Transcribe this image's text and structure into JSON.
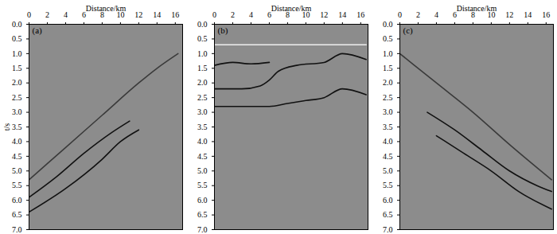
{
  "chart_data": [
    {
      "type": "seismic_section",
      "annotations": [
        "(a)"
      ],
      "x_label": "Distance/km",
      "y_label": "t/s",
      "xlim": [
        0,
        16.8
      ],
      "xticks": [
        0,
        2,
        4,
        6,
        8,
        10,
        12,
        14,
        16
      ],
      "ylim": [
        0,
        7
      ],
      "yticks": [
        {
          "value": 0,
          "label": "0.0"
        },
        {
          "value": 0.5,
          "label": "0.5"
        },
        {
          "value": 1,
          "label": "1.0"
        },
        {
          "value": 1.5,
          "label": "1.5"
        },
        {
          "value": 2,
          "label": "2.0"
        },
        {
          "value": 2.5,
          "label": "2.5"
        },
        {
          "value": 3,
          "label": "3.0"
        },
        {
          "value": 3.5,
          "label": "3.5"
        },
        {
          "value": 4,
          "label": "4.0"
        },
        {
          "value": 4.5,
          "label": "4.5"
        },
        {
          "value": 5,
          "label": "5.0"
        },
        {
          "value": 5.5,
          "label": "5.5"
        },
        {
          "value": 6,
          "label": "6.0"
        },
        {
          "value": 6.5,
          "label": "6.5"
        },
        {
          "value": 7,
          "label": "7.0"
        }
      ],
      "series": [
        {
          "color": "#3a3a3a",
          "x": [
            0,
            4,
            8,
            12,
            14,
            16.3
          ],
          "values": [
            5.3,
            4.2,
            3.1,
            2.0,
            1.5,
            1.0
          ]
        },
        {
          "color": "#111111",
          "x": [
            0,
            3,
            6,
            9,
            11
          ],
          "values": [
            5.9,
            5.2,
            4.4,
            3.7,
            3.3
          ]
        },
        {
          "color": "#111111",
          "x": [
            0,
            4,
            8,
            10,
            12
          ],
          "values": [
            6.4,
            5.6,
            4.6,
            4.0,
            3.6
          ]
        }
      ]
    },
    {
      "type": "seismic_section",
      "annotations": [
        "(b)"
      ],
      "x_label": "Distance/km",
      "xlim": [
        0,
        16.8
      ],
      "xticks": [
        0,
        2,
        4,
        6,
        8,
        10,
        12,
        14,
        16
      ],
      "ylim": [
        0,
        7
      ],
      "yticks": [
        {
          "value": 0,
          "label": "0.0"
        },
        {
          "value": 0.5,
          "label": "0.5"
        },
        {
          "value": 1,
          "label": "1.0"
        },
        {
          "value": 1.5,
          "label": "1.5"
        },
        {
          "value": 2,
          "label": "2.0"
        },
        {
          "value": 2.5,
          "label": "2.5"
        },
        {
          "value": 3,
          "label": "3.0"
        },
        {
          "value": 3.5,
          "label": "3.5"
        },
        {
          "value": 4,
          "label": "4.0"
        },
        {
          "value": 4.5,
          "label": "4.5"
        },
        {
          "value": 5,
          "label": "5.0"
        },
        {
          "value": 5.5,
          "label": "5.5"
        },
        {
          "value": 6,
          "label": "6.0"
        },
        {
          "value": 6.5,
          "label": "6.5"
        },
        {
          "value": 7,
          "label": "7.0"
        }
      ],
      "series": [
        {
          "color": "#eeeeee",
          "x": [
            0,
            16.6
          ],
          "values": [
            0.7,
            0.7
          ]
        },
        {
          "color": "#111111",
          "x": [
            0,
            2,
            4,
            6
          ],
          "values": [
            1.4,
            1.3,
            1.35,
            1.3
          ]
        },
        {
          "color": "#111111",
          "x": [
            0,
            3,
            5,
            6,
            7,
            9,
            12,
            14,
            16.6
          ],
          "values": [
            2.2,
            2.2,
            2.1,
            1.9,
            1.6,
            1.4,
            1.3,
            1.0,
            1.2
          ]
        },
        {
          "color": "#111111",
          "x": [
            0,
            3,
            6,
            8,
            10,
            12,
            14,
            16.6
          ],
          "values": [
            2.8,
            2.8,
            2.8,
            2.7,
            2.6,
            2.5,
            2.2,
            2.4
          ]
        }
      ]
    },
    {
      "type": "seismic_section",
      "annotations": [
        "(c)"
      ],
      "x_label": "Distance/km",
      "xlim": [
        0,
        16.8
      ],
      "xticks": [
        0,
        2,
        4,
        6,
        8,
        10,
        12,
        14,
        16
      ],
      "ylim": [
        0,
        7
      ],
      "yticks": [
        {
          "value": 0,
          "label": "0.0"
        },
        {
          "value": 0.5,
          "label": "0.5"
        },
        {
          "value": 1,
          "label": "1.0"
        },
        {
          "value": 1.5,
          "label": "1.5"
        },
        {
          "value": 2,
          "label": "2.0"
        },
        {
          "value": 2.5,
          "label": "2.5"
        },
        {
          "value": 3,
          "label": "3.0"
        },
        {
          "value": 3.5,
          "label": "3.5"
        },
        {
          "value": 4,
          "label": "4.0"
        },
        {
          "value": 4.5,
          "label": "4.5"
        },
        {
          "value": 5,
          "label": "5.0"
        },
        {
          "value": 5.5,
          "label": "5.5"
        },
        {
          "value": 6,
          "label": "6.0"
        },
        {
          "value": 6.5,
          "label": "6.5"
        },
        {
          "value": 7,
          "label": "7.0"
        }
      ],
      "series": [
        {
          "color": "#3a3a3a",
          "x": [
            0,
            4,
            8,
            12,
            16.6
          ],
          "values": [
            1.0,
            2.0,
            3.0,
            4.1,
            5.3
          ]
        },
        {
          "color": "#111111",
          "x": [
            3,
            6,
            9,
            12,
            15,
            16.6
          ],
          "values": [
            3.0,
            3.6,
            4.3,
            5.0,
            5.5,
            5.7
          ]
        },
        {
          "color": "#111111",
          "x": [
            4,
            7,
            10,
            13,
            16.6
          ],
          "values": [
            3.8,
            4.4,
            5.0,
            5.7,
            6.3
          ]
        }
      ]
    }
  ]
}
